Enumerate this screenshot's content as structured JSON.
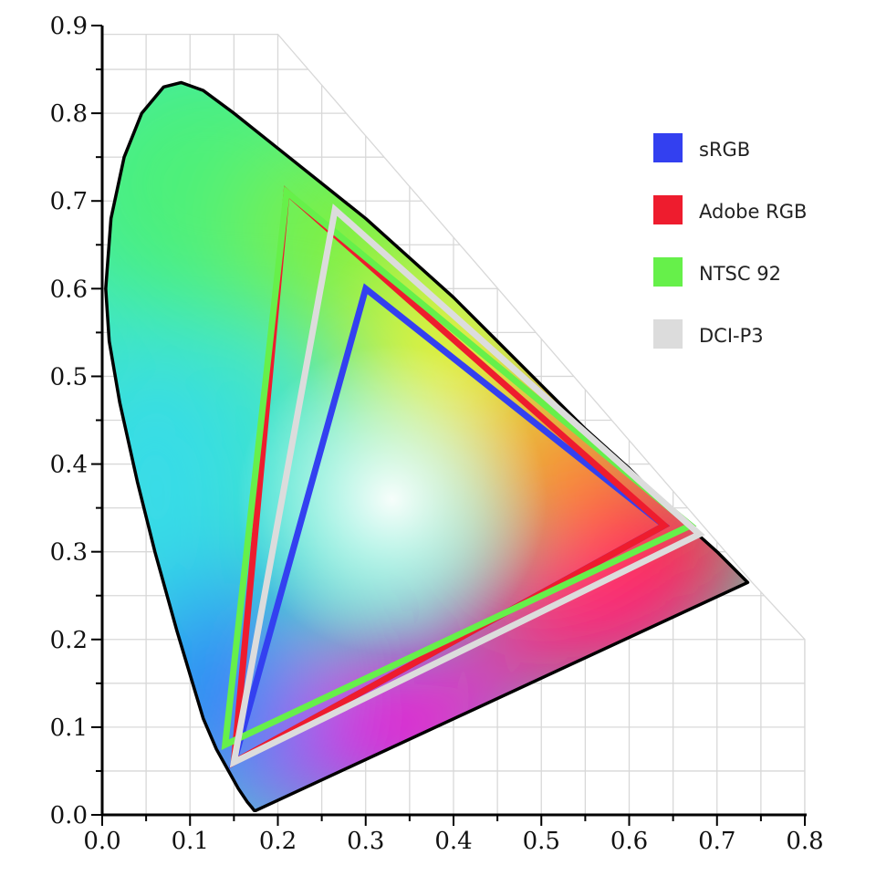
{
  "chart_data": {
    "type": "scatter",
    "title": "",
    "xlabel": "",
    "ylabel": "",
    "xlim": [
      0.0,
      0.8
    ],
    "ylim": [
      0.0,
      0.9
    ],
    "grid": true,
    "x_ticks": [
      "0.0",
      "0.1",
      "0.2",
      "0.3",
      "0.4",
      "0.5",
      "0.6",
      "0.7",
      "0.8"
    ],
    "y_ticks": [
      "0.0",
      "0.1",
      "0.2",
      "0.3",
      "0.4",
      "0.5",
      "0.6",
      "0.7",
      "0.8",
      "0.9"
    ],
    "legend_position": "top-right",
    "spectral_locus": [
      [
        0.175,
        0.005
      ],
      [
        0.173,
        0.005
      ],
      [
        0.17,
        0.009
      ],
      [
        0.165,
        0.015
      ],
      [
        0.155,
        0.03
      ],
      [
        0.145,
        0.048
      ],
      [
        0.13,
        0.075
      ],
      [
        0.115,
        0.11
      ],
      [
        0.1,
        0.16
      ],
      [
        0.085,
        0.21
      ],
      [
        0.06,
        0.3
      ],
      [
        0.04,
        0.38
      ],
      [
        0.02,
        0.47
      ],
      [
        0.008,
        0.54
      ],
      [
        0.004,
        0.6
      ],
      [
        0.01,
        0.68
      ],
      [
        0.025,
        0.75
      ],
      [
        0.045,
        0.8
      ],
      [
        0.07,
        0.83
      ],
      [
        0.09,
        0.835
      ],
      [
        0.115,
        0.826
      ],
      [
        0.15,
        0.8
      ],
      [
        0.2,
        0.76
      ],
      [
        0.25,
        0.72
      ],
      [
        0.3,
        0.68
      ],
      [
        0.35,
        0.635
      ],
      [
        0.4,
        0.59
      ],
      [
        0.45,
        0.54
      ],
      [
        0.5,
        0.49
      ],
      [
        0.55,
        0.44
      ],
      [
        0.6,
        0.395
      ],
      [
        0.65,
        0.345
      ],
      [
        0.7,
        0.3
      ],
      [
        0.735,
        0.265
      ]
    ],
    "series": [
      {
        "name": "sRGB",
        "color": "#3340f0",
        "points": [
          [
            0.64,
            0.33
          ],
          [
            0.3,
            0.6
          ],
          [
            0.15,
            0.06
          ]
        ]
      },
      {
        "name": "Adobe RGB",
        "color": "#ee1c2e",
        "points": [
          [
            0.64,
            0.33
          ],
          [
            0.21,
            0.71
          ],
          [
            0.15,
            0.06
          ]
        ]
      },
      {
        "name": "NTSC 92",
        "color": "#66f04a",
        "points": [
          [
            0.67,
            0.33
          ],
          [
            0.21,
            0.71
          ],
          [
            0.14,
            0.08
          ]
        ]
      },
      {
        "name": "DCI-P3",
        "color": "#dcdcdc",
        "points": [
          [
            0.68,
            0.32
          ],
          [
            0.265,
            0.69
          ],
          [
            0.15,
            0.06
          ]
        ]
      }
    ]
  }
}
